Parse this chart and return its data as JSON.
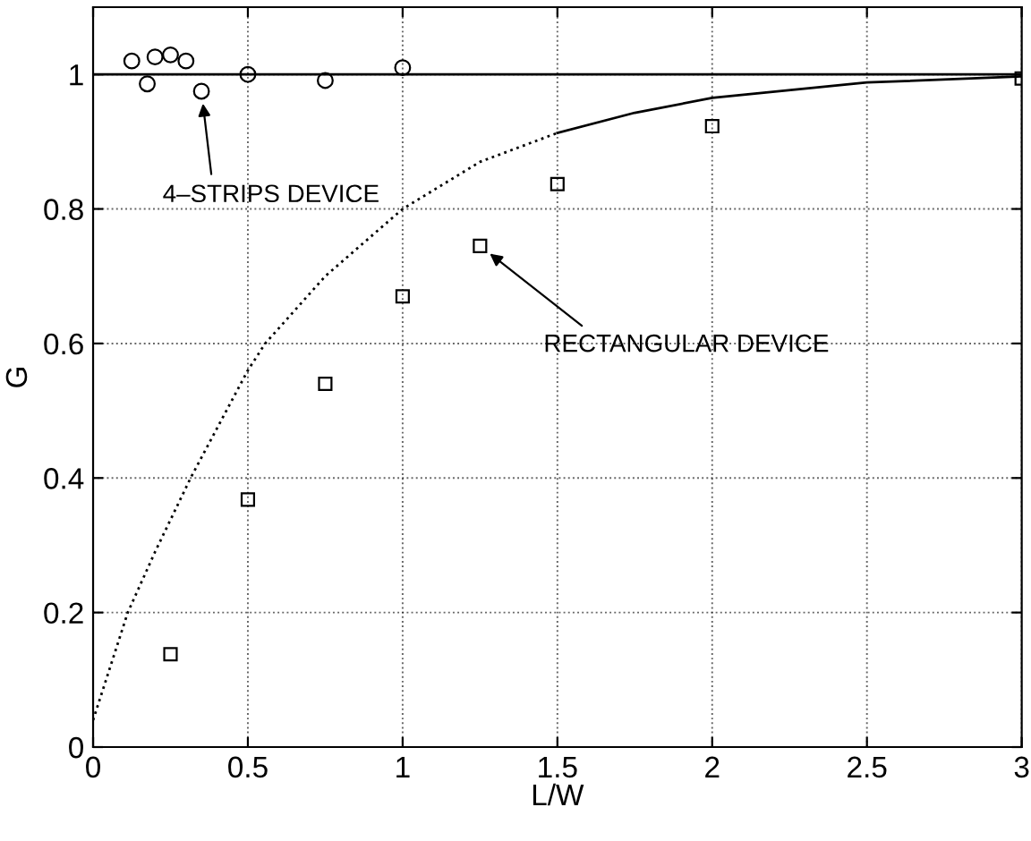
{
  "chart_data": {
    "type": "scatter",
    "xlabel": "L/W",
    "ylabel": "G",
    "xlim": [
      0,
      3
    ],
    "ylim": [
      0,
      1.1
    ],
    "xticks": [
      0,
      0.5,
      1,
      1.5,
      2,
      2.5,
      3
    ],
    "yticks": [
      0,
      0.2,
      0.4,
      0.6,
      0.8,
      1
    ],
    "grid": true,
    "series": [
      {
        "marker": "circle",
        "color": "#000000",
        "x": [
          0.125,
          0.175,
          0.2,
          0.25,
          0.3,
          0.35,
          0.5,
          0.75,
          1.0
        ],
        "values": [
          1.02,
          0.986,
          1.026,
          1.029,
          1.02,
          0.975,
          1.0,
          0.991,
          1.01
        ]
      },
      {
        "marker": "square",
        "color": "#000000",
        "x": [
          0.25,
          0.5,
          0.75,
          1.0,
          1.25,
          1.5,
          2.0,
          3.0
        ],
        "values": [
          0.138,
          0.368,
          0.54,
          0.67,
          0.745,
          0.837,
          0.923,
          0.994
        ]
      },
      {
        "type": "line",
        "line_style": "dotted",
        "color": "#000000",
        "x": [
          0,
          0.112,
          0.2,
          0.315,
          0.5,
          0.556,
          0.75,
          1.0,
          1.25,
          1.5
        ],
        "values": [
          0.04,
          0.2,
          0.29,
          0.4,
          0.56,
          0.6,
          0.7,
          0.8,
          0.87,
          0.913
        ]
      },
      {
        "type": "line",
        "line_style": "solid",
        "color": "#000000",
        "x": [
          1.5,
          1.75,
          2.0,
          2.5,
          3.0
        ],
        "values": [
          0.913,
          0.943,
          0.965,
          0.988,
          0.997
        ]
      }
    ],
    "ref_lines": [
      {
        "axis": "y",
        "value": 1,
        "color": "#000000",
        "line_style": "solid"
      }
    ],
    "annotations": [
      {
        "text": "4–STRIPS DEVICE",
        "x": 0.35,
        "y": 0.975
      },
      {
        "text": "RECTANGULAR DEVICE",
        "x": 1.25,
        "y": 0.745
      }
    ]
  }
}
